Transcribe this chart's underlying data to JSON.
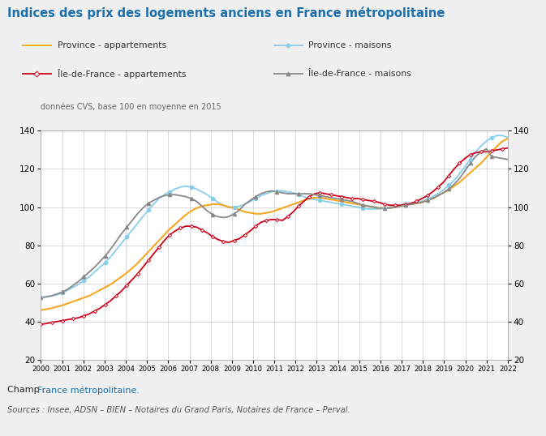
{
  "title": "Indices des prix des logements anciens en France métropolitaine",
  "subtitle": "données CVS, base 100 en moyenne en 2015",
  "champ": "Champ : ",
  "champ_colored": "France métropolitaine.",
  "sources": "Sources : Insee, ADSN – BIEN – Notaires du Grand Paris, Notaires de France – Perval.",
  "ylim": [
    20,
    140
  ],
  "x_quarterly": null,
  "province_appt": [
    46.0,
    46.5,
    47.0,
    47.8,
    48.5,
    49.5,
    50.5,
    51.5,
    52.5,
    53.5,
    55.0,
    56.5,
    58.0,
    59.5,
    61.5,
    63.5,
    65.5,
    68.0,
    70.5,
    73.5,
    76.5,
    79.5,
    82.5,
    85.5,
    88.5,
    91.0,
    93.5,
    96.0,
    98.0,
    99.5,
    100.5,
    101.0,
    101.5,
    101.5,
    101.0,
    100.0,
    99.5,
    98.5,
    97.5,
    97.0,
    96.5,
    96.5,
    97.0,
    97.5,
    98.5,
    99.5,
    100.5,
    101.5,
    102.5,
    103.5,
    104.5,
    105.0,
    105.0,
    104.5,
    104.0,
    103.5,
    103.0,
    102.5,
    102.0,
    101.5,
    101.0,
    100.5,
    100.0,
    99.5,
    99.5,
    99.5,
    100.0,
    100.5,
    101.0,
    101.5,
    102.0,
    102.5,
    103.5,
    104.5,
    106.0,
    107.5,
    109.0,
    111.0,
    113.0,
    115.5,
    118.0,
    120.5,
    123.0,
    126.0,
    129.0,
    132.0,
    134.5,
    136.0
  ],
  "province_maisons": [
    52.5,
    53.0,
    53.5,
    54.0,
    55.0,
    56.5,
    58.0,
    59.5,
    61.5,
    63.5,
    66.0,
    68.5,
    71.0,
    74.0,
    77.5,
    81.0,
    84.5,
    88.0,
    91.5,
    95.0,
    98.5,
    101.5,
    104.5,
    106.5,
    108.0,
    109.5,
    110.5,
    111.0,
    110.5,
    109.5,
    108.0,
    106.5,
    104.5,
    102.5,
    101.0,
    100.0,
    100.0,
    100.5,
    101.5,
    103.0,
    104.5,
    106.0,
    107.0,
    108.0,
    108.5,
    108.5,
    108.0,
    107.5,
    106.5,
    105.5,
    104.5,
    104.0,
    103.5,
    103.0,
    102.5,
    102.0,
    101.5,
    101.0,
    100.5,
    100.0,
    99.5,
    99.0,
    99.0,
    99.0,
    99.5,
    100.0,
    100.5,
    101.0,
    101.5,
    102.0,
    102.5,
    103.0,
    104.0,
    105.5,
    107.0,
    109.0,
    111.5,
    114.0,
    117.5,
    121.0,
    125.0,
    129.0,
    132.0,
    134.5,
    136.5,
    137.5,
    137.5,
    136.5
  ],
  "idf_appt": [
    38.5,
    39.0,
    39.5,
    40.0,
    40.5,
    41.0,
    41.5,
    42.0,
    43.0,
    44.0,
    45.5,
    47.0,
    49.0,
    51.0,
    53.5,
    56.0,
    59.0,
    62.0,
    65.0,
    68.5,
    72.0,
    75.5,
    79.0,
    82.5,
    85.5,
    87.5,
    89.0,
    90.0,
    90.0,
    89.5,
    88.0,
    86.5,
    84.5,
    83.0,
    82.0,
    81.5,
    82.5,
    83.5,
    85.5,
    87.5,
    90.0,
    92.0,
    93.0,
    93.5,
    93.5,
    93.0,
    95.0,
    97.5,
    100.5,
    103.0,
    105.5,
    107.0,
    107.5,
    107.0,
    106.5,
    106.0,
    105.5,
    105.0,
    104.5,
    104.5,
    104.0,
    103.5,
    103.0,
    102.5,
    101.5,
    101.0,
    101.0,
    101.0,
    101.5,
    102.0,
    103.0,
    104.5,
    106.0,
    108.0,
    110.5,
    113.0,
    116.5,
    120.0,
    123.0,
    125.5,
    127.5,
    128.5,
    129.0,
    129.0,
    129.5,
    130.0,
    130.5,
    131.0
  ],
  "idf_maisons": [
    52.5,
    53.0,
    53.5,
    54.5,
    55.5,
    57.0,
    59.0,
    61.0,
    63.5,
    66.0,
    68.5,
    71.5,
    74.5,
    78.0,
    82.0,
    86.0,
    89.5,
    93.0,
    96.5,
    99.5,
    102.0,
    103.5,
    105.0,
    106.0,
    106.5,
    106.5,
    106.0,
    105.5,
    104.5,
    103.0,
    100.5,
    98.0,
    96.0,
    95.0,
    94.5,
    95.0,
    96.5,
    98.5,
    101.5,
    103.5,
    105.5,
    107.0,
    108.0,
    108.5,
    108.0,
    107.5,
    107.0,
    107.0,
    107.0,
    107.0,
    107.0,
    106.5,
    106.0,
    105.5,
    105.0,
    104.5,
    104.0,
    103.5,
    103.0,
    102.0,
    101.0,
    100.5,
    100.0,
    99.5,
    99.5,
    99.5,
    100.0,
    100.5,
    101.0,
    101.5,
    102.0,
    102.5,
    103.5,
    104.5,
    106.0,
    107.5,
    109.5,
    112.0,
    115.0,
    119.0,
    123.0,
    126.5,
    129.0,
    130.5,
    126.5,
    126.0,
    125.5,
    125.0
  ],
  "province_appt_color": "#F5A623",
  "province_maisons_color": "#87CEEB",
  "idf_appt_color": "#D0021B",
  "idf_maisons_color": "#888888",
  "background_color": "#f0f0f0",
  "plot_bg_color": "#ffffff",
  "title_color": "#1a6eac",
  "champ_color": "#000000",
  "champ_link_color": "#1a6eac",
  "sources_color": "#555555",
  "n_points": 88
}
